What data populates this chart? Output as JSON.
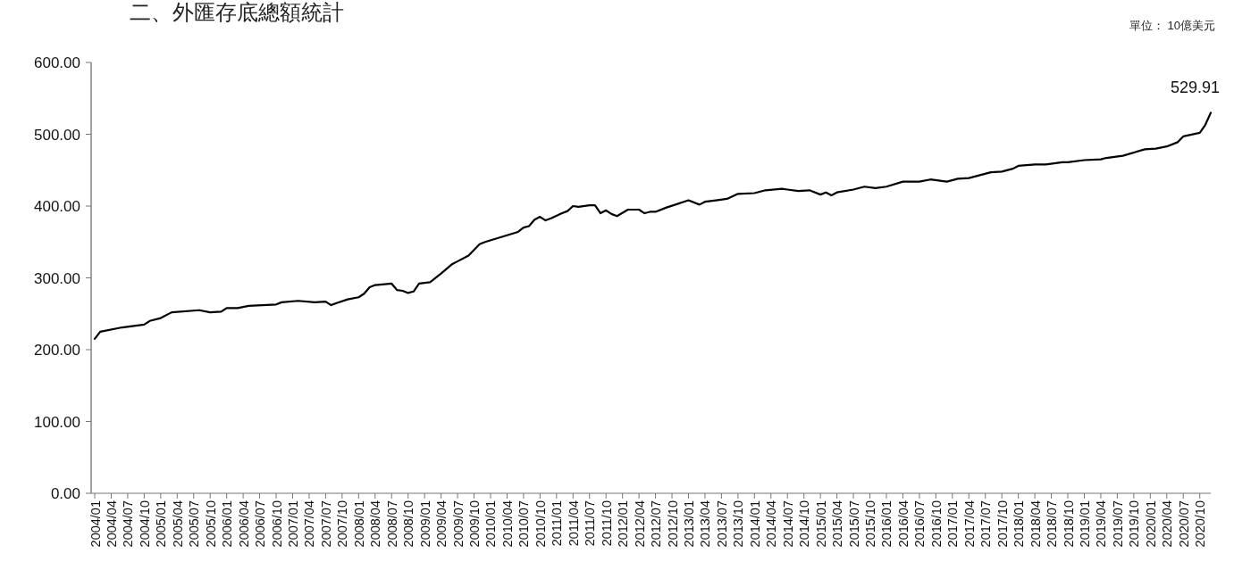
{
  "chart_data": {
    "type": "line",
    "title": "二、外匯存底總額統計",
    "annotations": [
      "單位： 10億美元",
      {
        "text": "529.91",
        "x": "2020-12",
        "y": 529.91
      }
    ],
    "ylim": [
      0,
      600
    ],
    "yticks": [
      {
        "value": 0,
        "label": "0.00"
      },
      {
        "value": 100,
        "label": "100.00"
      },
      {
        "value": 200,
        "label": "200.00"
      },
      {
        "value": 300,
        "label": "300.00"
      },
      {
        "value": 400,
        "label": "400.00"
      },
      {
        "value": 500,
        "label": "500.00"
      },
      {
        "value": 600,
        "label": "600.00"
      }
    ],
    "xlim": [
      "2004-01",
      "2020-12"
    ],
    "xticks": [
      {
        "value": "2004-01",
        "label": "2004/01"
      },
      {
        "value": "2004-04",
        "label": "2004/04"
      },
      {
        "value": "2004-07",
        "label": "2004/07"
      },
      {
        "value": "2004-10",
        "label": "2004/10"
      },
      {
        "value": "2005-01",
        "label": "2005/01"
      },
      {
        "value": "2005-04",
        "label": "2005/04"
      },
      {
        "value": "2005-07",
        "label": "2005/07"
      },
      {
        "value": "2005-10",
        "label": "2005/10"
      },
      {
        "value": "2006-01",
        "label": "2006/01"
      },
      {
        "value": "2006-04",
        "label": "2006/04"
      },
      {
        "value": "2006-07",
        "label": "2006/07"
      },
      {
        "value": "2006-10",
        "label": "2006/10"
      },
      {
        "value": "2007-01",
        "label": "2007/01"
      },
      {
        "value": "2007-04",
        "label": "2007/04"
      },
      {
        "value": "2007-07",
        "label": "2007/07"
      },
      {
        "value": "2007-10",
        "label": "2007/10"
      },
      {
        "value": "2008-01",
        "label": "2008/01"
      },
      {
        "value": "2008-04",
        "label": "2008/04"
      },
      {
        "value": "2008-07",
        "label": "2008/07"
      },
      {
        "value": "2008-10",
        "label": "2008/10"
      },
      {
        "value": "2009-01",
        "label": "2009/01"
      },
      {
        "value": "2009-04",
        "label": "2009/04"
      },
      {
        "value": "2009-07",
        "label": "2009/07"
      },
      {
        "value": "2009-10",
        "label": "2009/10"
      },
      {
        "value": "2010-01",
        "label": "2010/01"
      },
      {
        "value": "2010-04",
        "label": "2010/04"
      },
      {
        "value": "2010-07",
        "label": "2010/07"
      },
      {
        "value": "2010-10",
        "label": "2010/10"
      },
      {
        "value": "2011-01",
        "label": "2011/01"
      },
      {
        "value": "2011-04",
        "label": "2011/04"
      },
      {
        "value": "2011-07",
        "label": "2011/07"
      },
      {
        "value": "2011-10",
        "label": "2011/10"
      },
      {
        "value": "2012-01",
        "label": "2012/01"
      },
      {
        "value": "2012-04",
        "label": "2012/04"
      },
      {
        "value": "2012-07",
        "label": "2012/07"
      },
      {
        "value": "2012-10",
        "label": "2012/10"
      },
      {
        "value": "2013-01",
        "label": "2013/01"
      },
      {
        "value": "2013-04",
        "label": "2013/04"
      },
      {
        "value": "2013-07",
        "label": "2013/07"
      },
      {
        "value": "2013-10",
        "label": "2013/10"
      },
      {
        "value": "2014-01",
        "label": "2014/01"
      },
      {
        "value": "2014-04",
        "label": "2014/04"
      },
      {
        "value": "2014-07",
        "label": "2014/07"
      },
      {
        "value": "2014-10",
        "label": "2014/10"
      },
      {
        "value": "2015-01",
        "label": "2015/01"
      },
      {
        "value": "2015-04",
        "label": "2015/04"
      },
      {
        "value": "2015-07",
        "label": "2015/07"
      },
      {
        "value": "2015-10",
        "label": "2015/10"
      },
      {
        "value": "2016-01",
        "label": "2016/01"
      },
      {
        "value": "2016-04",
        "label": "2016/04"
      },
      {
        "value": "2016-07",
        "label": "2016/07"
      },
      {
        "value": "2016-10",
        "label": "2016/10"
      },
      {
        "value": "2017-01",
        "label": "2017/01"
      },
      {
        "value": "2017-04",
        "label": "2017/04"
      },
      {
        "value": "2017-07",
        "label": "2017/07"
      },
      {
        "value": "2017-10",
        "label": "2017/10"
      },
      {
        "value": "2018-01",
        "label": "2018/01"
      },
      {
        "value": "2018-04",
        "label": "2018/04"
      },
      {
        "value": "2018-07",
        "label": "2018/07"
      },
      {
        "value": "2018-10",
        "label": "2018/10"
      },
      {
        "value": "2019-01",
        "label": "2019/01"
      },
      {
        "value": "2019-04",
        "label": "2019/04"
      },
      {
        "value": "2019-07",
        "label": "2019/07"
      },
      {
        "value": "2019-10",
        "label": "2019/10"
      },
      {
        "value": "2020-01",
        "label": "2020/01"
      },
      {
        "value": "2020-04",
        "label": "2020/04"
      },
      {
        "value": "2020-07",
        "label": "2020/07"
      },
      {
        "value": "2020-10",
        "label": "2020/10"
      }
    ],
    "series": [
      {
        "color": "#000000",
        "x": [
          "2004-01",
          "2004-02",
          "2004-06",
          "2004-10",
          "2004-11",
          "2005-01",
          "2005-03",
          "2005-08",
          "2005-10",
          "2005-12",
          "2006-01",
          "2006-03",
          "2006-05",
          "2006-10",
          "2006-11",
          "2007-02",
          "2007-05",
          "2007-07",
          "2007-08",
          "2007-09",
          "2007-11",
          "2008-01",
          "2008-02",
          "2008-03",
          "2008-04",
          "2008-07",
          "2008-08",
          "2008-09",
          "2008-10",
          "2008-11",
          "2008-12",
          "2009-02",
          "2009-04",
          "2009-06",
          "2009-09",
          "2009-11",
          "2009-12",
          "2010-06",
          "2010-07",
          "2010-08",
          "2010-09",
          "2010-10",
          "2010-11",
          "2010-12",
          "2011-02",
          "2011-03",
          "2011-04",
          "2011-05",
          "2011-07",
          "2011-08",
          "2011-09",
          "2011-10",
          "2011-11",
          "2011-12",
          "2012-02",
          "2012-04",
          "2012-05",
          "2012-06",
          "2012-07",
          "2012-09",
          "2012-11",
          "2013-01",
          "2013-03",
          "2013-04",
          "2013-06",
          "2013-08",
          "2013-10",
          "2014-01",
          "2014-03",
          "2014-06",
          "2014-07",
          "2014-09",
          "2014-11",
          "2015-01",
          "2015-02",
          "2015-03",
          "2015-04",
          "2015-07",
          "2015-09",
          "2015-11",
          "2016-01",
          "2016-04",
          "2016-07",
          "2016-09",
          "2016-12",
          "2017-02",
          "2017-04",
          "2017-08",
          "2017-10",
          "2017-12",
          "2018-01",
          "2018-04",
          "2018-06",
          "2018-09",
          "2018-10",
          "2019-01",
          "2019-04",
          "2019-05",
          "2019-08",
          "2019-12",
          "2020-02",
          "2020-04",
          "2020-06",
          "2020-07",
          "2020-10",
          "2020-11",
          "2020-12"
        ],
        "values": [
          215,
          225,
          231,
          235,
          240,
          244,
          252,
          255,
          252,
          253,
          258,
          258,
          261,
          263,
          266,
          268,
          266,
          267,
          262,
          265,
          270,
          273,
          278,
          287,
          290,
          292,
          283,
          282,
          279,
          281,
          292,
          294,
          306,
          319,
          331,
          347,
          350,
          364,
          370,
          372,
          381,
          385,
          380,
          383,
          390,
          393,
          400,
          399,
          401,
          401,
          390,
          394,
          389,
          386,
          395,
          395,
          390,
          392,
          392,
          398,
          403,
          408,
          402,
          406,
          408,
          410,
          417,
          418,
          422,
          424,
          423,
          421,
          422,
          416,
          419,
          415,
          419,
          423,
          427,
          425,
          427,
          434,
          434,
          437,
          434,
          438,
          439,
          447,
          448,
          452,
          456,
          458,
          458,
          461,
          461,
          464,
          465,
          467,
          470,
          479,
          480,
          483,
          489,
          497,
          502,
          513,
          529.91
        ]
      }
    ],
    "grid": false,
    "marker": "none",
    "line_style": "solid"
  }
}
